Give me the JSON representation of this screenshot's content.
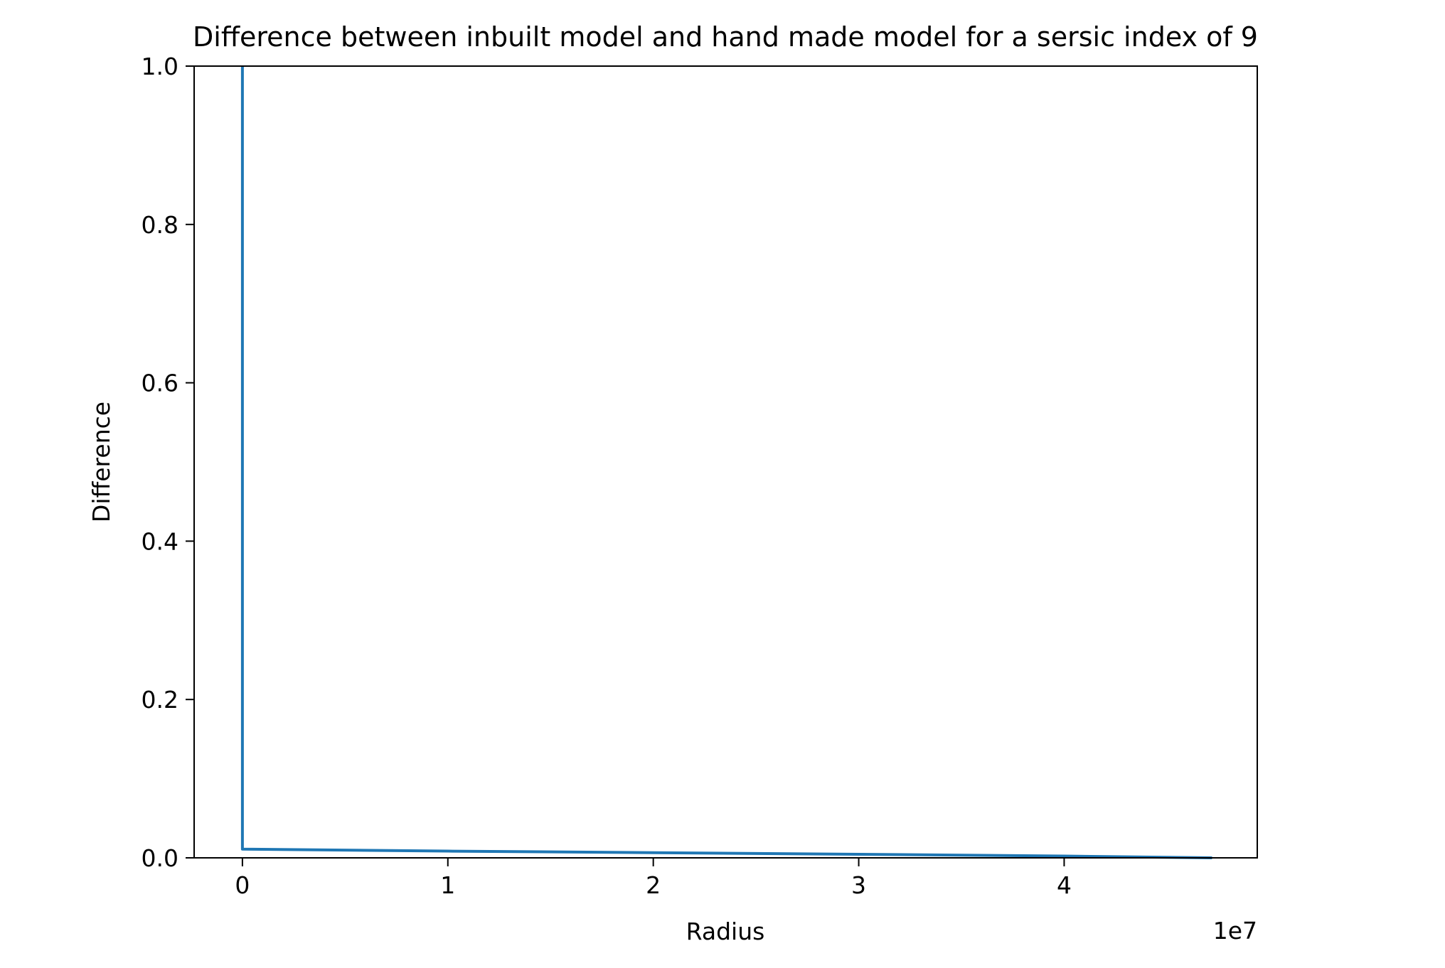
{
  "chart_data": {
    "type": "line",
    "title": "Difference between inbuilt model and hand made model for a sersic index of 9",
    "xlabel": "Radius",
    "ylabel": "Difference",
    "x_offset_label": "1e7",
    "x_scale": 10000000,
    "xlim": [
      -2350000,
      49400000
    ],
    "ylim": [
      0,
      1
    ],
    "x_ticks": [
      0,
      10000000,
      20000000,
      30000000,
      40000000
    ],
    "x_tick_labels": [
      "0",
      "1",
      "2",
      "3",
      "4"
    ],
    "y_ticks": [
      0.0,
      0.2,
      0.4,
      0.6,
      0.8,
      1.0
    ],
    "y_tick_labels": [
      "0.0",
      "0.2",
      "0.4",
      "0.6",
      "0.8",
      "1.0"
    ],
    "grid": false,
    "legend": false,
    "series": [
      {
        "color": "#1f77b4",
        "x": [
          0,
          0,
          10000000,
          20000000,
          30000000,
          40000000,
          47200000
        ],
        "y": [
          1.0,
          0.011,
          0.0085,
          0.0065,
          0.0045,
          0.0022,
          0.0
        ]
      }
    ]
  }
}
